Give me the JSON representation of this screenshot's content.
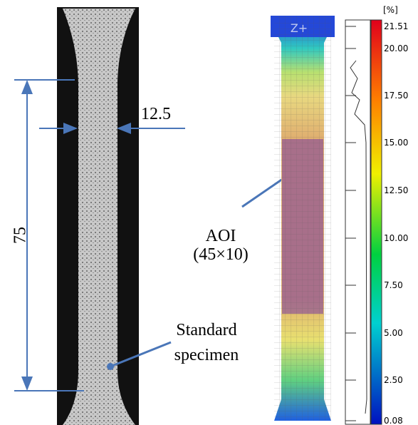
{
  "left_panel": {
    "length_label": "75",
    "width_label": "12.5",
    "specimen_label": [
      "Standard",
      "specimen"
    ]
  },
  "right_panel": {
    "axis_label": "Z+",
    "aoi_label": [
      "AOI",
      "(45×10)"
    ],
    "colorbar": {
      "unit": "[%]",
      "labels": [
        "21.51",
        "20.00",
        "17.50",
        "15.00",
        "12.50",
        "10.00",
        "7.50",
        "5.00",
        "2.50",
        "0.08"
      ]
    }
  }
}
